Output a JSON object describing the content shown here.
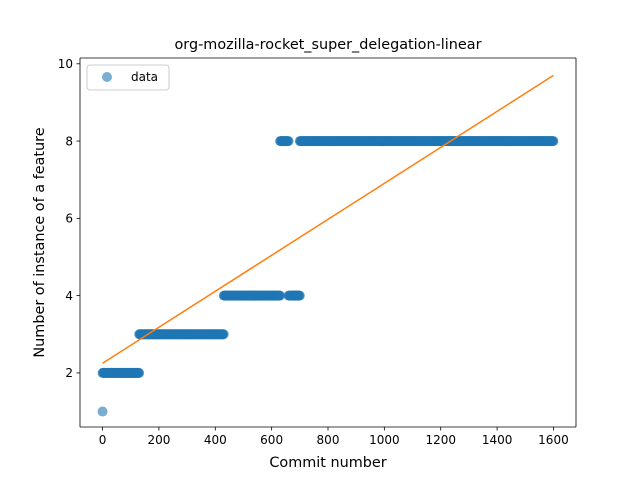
{
  "chart_data": {
    "type": "scatter",
    "title": "org-mozilla-rocket_super_delegation-linear",
    "xlabel": "Commit number",
    "ylabel": "Number of instance of a feature",
    "xlim": [
      -80,
      1680
    ],
    "ylim": [
      0.6,
      10.15
    ],
    "xticks": [
      0,
      200,
      400,
      600,
      800,
      1000,
      1200,
      1400,
      1600
    ],
    "xtick_labels": [
      "0",
      "200",
      "400",
      "600",
      "800",
      "1000",
      "1200",
      "1400",
      "1600"
    ],
    "yticks": [
      2,
      4,
      6,
      8,
      10
    ],
    "ytick_labels": [
      "2",
      "4",
      "6",
      "8",
      "10"
    ],
    "legend": {
      "label": "data",
      "location": "upper-left"
    },
    "colors": {
      "data": "#1f77b4",
      "fit": "#ff7f0e"
    },
    "series": [
      {
        "name": "data",
        "kind": "scatter",
        "segments": [
          {
            "x_start": 0,
            "x_end": 0,
            "y": 1
          },
          {
            "x_start": 0,
            "x_end": 130,
            "y": 2
          },
          {
            "x_start": 130,
            "x_end": 430,
            "y": 3
          },
          {
            "x_start": 430,
            "x_end": 630,
            "y": 4
          },
          {
            "x_start": 630,
            "x_end": 660,
            "y": 8
          },
          {
            "x_start": 660,
            "x_end": 700,
            "y": 4
          },
          {
            "x_start": 700,
            "x_end": 1600,
            "y": 8
          }
        ]
      },
      {
        "name": "linear fit",
        "kind": "line",
        "x": [
          0,
          1600
        ],
        "y": [
          2.25,
          9.7
        ]
      }
    ]
  }
}
